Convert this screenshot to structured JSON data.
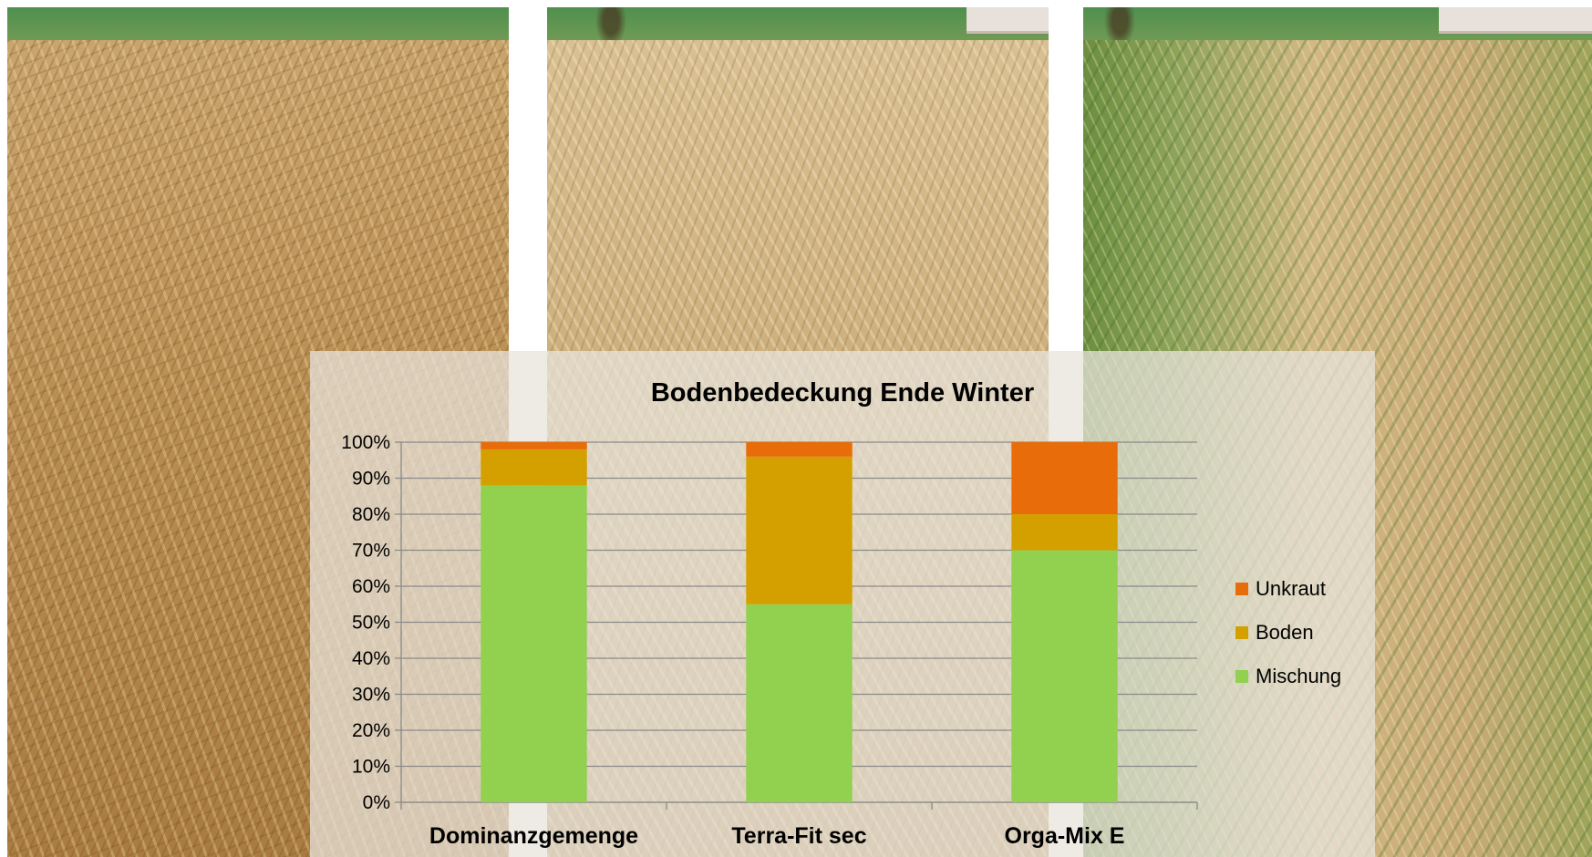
{
  "photos": [
    {
      "name": "field-photo-left"
    },
    {
      "name": "field-photo-middle"
    },
    {
      "name": "field-photo-right"
    }
  ],
  "chart_data": {
    "type": "bar",
    "stacked": true,
    "title": "Bodenbedeckung Ende Winter",
    "xlabel": "",
    "ylabel": "",
    "categories": [
      "Dominanzgemenge",
      "Terra-Fit sec",
      "Orga-Mix E"
    ],
    "series": [
      {
        "name": "Mischung",
        "color": "#92d050",
        "values": [
          88,
          55,
          70
        ]
      },
      {
        "name": "Boden",
        "color": "#d4a000",
        "values": [
          10,
          41,
          10
        ]
      },
      {
        "name": "Unkraut",
        "color": "#e86c0a",
        "values": [
          2,
          4,
          20
        ]
      }
    ],
    "ylim": [
      0,
      100
    ],
    "yticks": [
      "0%",
      "10%",
      "20%",
      "30%",
      "40%",
      "50%",
      "60%",
      "70%",
      "80%",
      "90%",
      "100%"
    ],
    "grid": true,
    "legend_position": "right",
    "legend_order": [
      "Unkraut",
      "Boden",
      "Mischung"
    ]
  }
}
